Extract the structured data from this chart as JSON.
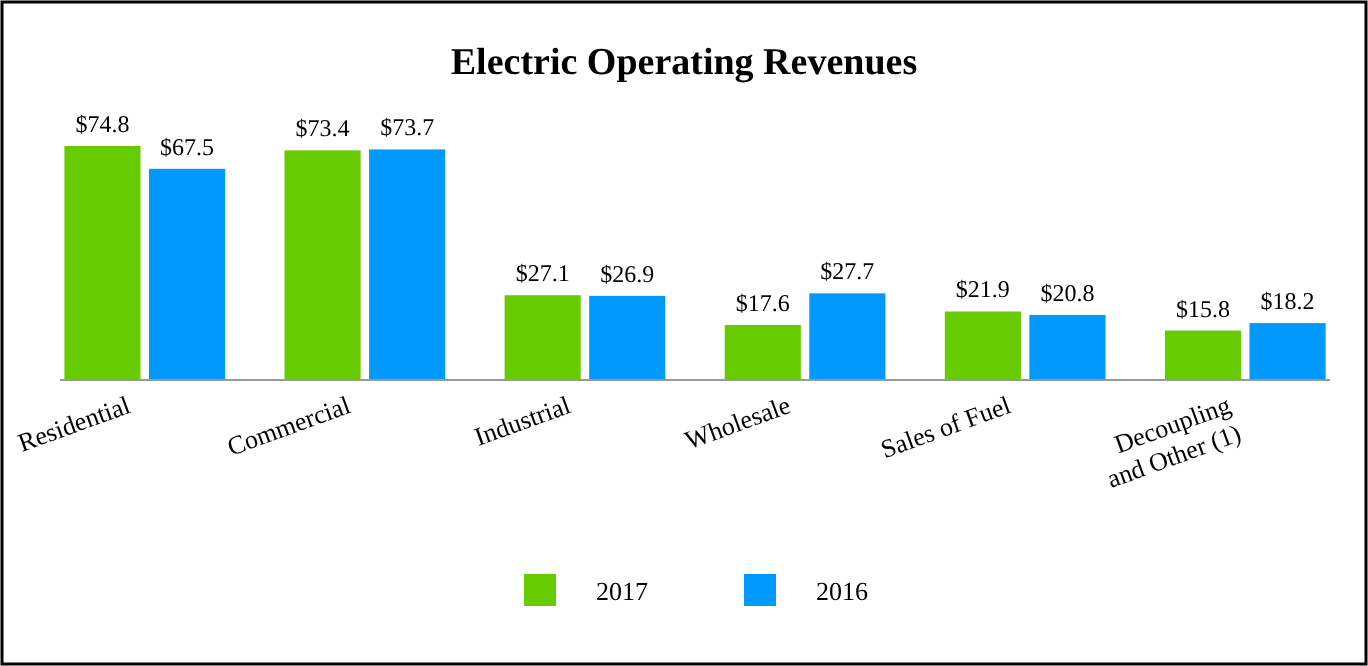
{
  "chart_data": {
    "type": "bar",
    "title": "Electric Operating Revenues",
    "categories": [
      "Residential",
      "Commercial",
      "Industrial",
      "Wholesale",
      "Sales of Fuel",
      "Decoupling and Other (1)"
    ],
    "series": [
      {
        "name": "2017",
        "color": "#66cc00",
        "values": [
          74.8,
          73.4,
          27.1,
          17.6,
          21.9,
          15.8
        ],
        "value_labels": [
          "$74.8",
          "$73.4",
          "$27.1",
          "$17.6",
          "$21.9",
          "$15.8"
        ]
      },
      {
        "name": "2016",
        "color": "#0099ff",
        "values": [
          67.5,
          73.7,
          26.9,
          27.7,
          20.8,
          18.2
        ],
        "value_labels": [
          "$67.5",
          "$73.7",
          "$26.9",
          "$27.7",
          "$20.8",
          "$18.2"
        ]
      }
    ],
    "legend": "bottom"
  }
}
